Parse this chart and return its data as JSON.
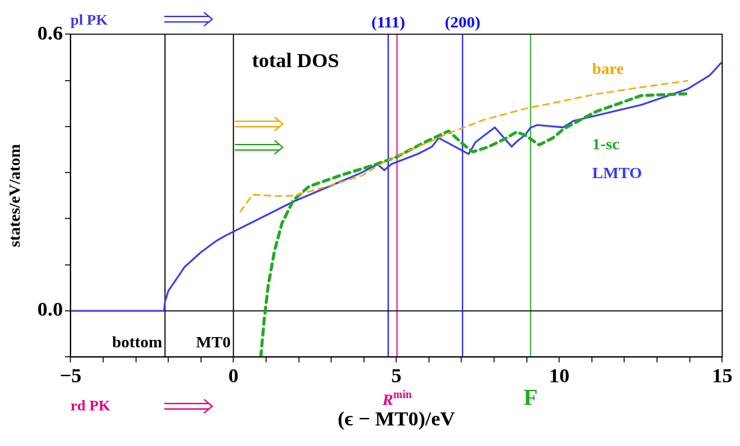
{
  "chart_data": {
    "type": "line",
    "title": "total DOS",
    "xlabel": "(ϵ − MT0)/eV",
    "ylabel": "states/eV/atom",
    "annotations": [
      "pl PK",
      "rd PK",
      "(111)",
      "(200)"
    ],
    "xlim": [
      -5,
      15
    ],
    "ylim": [
      -0.1,
      0.6
    ],
    "xticks": [
      {
        "value": -5,
        "label": "−5"
      },
      {
        "value": -4,
        "label": null
      },
      {
        "value": -3,
        "label": null
      },
      {
        "value": -2,
        "label": null
      },
      {
        "value": -1,
        "label": null
      },
      0,
      {
        "value": 1,
        "label": null
      },
      {
        "value": 2,
        "label": null
      },
      {
        "value": 3,
        "label": null
      },
      {
        "value": 4,
        "label": null
      },
      5,
      {
        "value": 6,
        "label": null
      },
      {
        "value": 7,
        "label": null
      },
      {
        "value": 8,
        "label": null
      },
      {
        "value": 9,
        "label": null
      },
      10,
      {
        "value": 11,
        "label": null
      },
      {
        "value": 12,
        "label": null
      },
      {
        "value": 13,
        "label": null
      },
      {
        "value": 14,
        "label": null
      },
      15
    ],
    "yticks": [
      {
        "value": -0.1,
        "label": null
      },
      {
        "value": 0,
        "label": "0.0"
      },
      {
        "value": 0.1,
        "label": null
      },
      {
        "value": 0.2,
        "label": null
      },
      {
        "value": 0.3,
        "label": null
      },
      {
        "value": 0.4,
        "label": null
      },
      {
        "value": 0.5,
        "label": null
      },
      {
        "value": 0.6,
        "label": "0.6"
      }
    ],
    "grid": false,
    "legend": false,
    "marker": "none",
    "series": [
      {
        "name": "bare",
        "color": "#f5a800",
        "line_style": "dashed",
        "x": [
          0.21,
          0.59,
          1.36,
          1.84,
          2.5,
          3.2,
          3.94,
          4.63,
          5.3,
          6.03,
          6.6,
          7.71,
          9.03,
          10.1,
          11.12,
          12.5,
          13.93
        ],
        "values": [
          0.215,
          0.252,
          0.249,
          0.25,
          0.262,
          0.277,
          0.293,
          0.323,
          0.345,
          0.367,
          0.385,
          0.415,
          0.44,
          0.455,
          0.47,
          0.485,
          0.499
        ]
      },
      {
        "name": "1-sc",
        "color": "#22aa22",
        "line_style": "dashed",
        "x": [
          0.84,
          0.94,
          1.07,
          1.26,
          1.49,
          1.84,
          2.32,
          3.25,
          4.21,
          4.98,
          5.88,
          6.6,
          7.14,
          7.35,
          7.8,
          8.3,
          8.69,
          8.96,
          9.38,
          9.8,
          10.16,
          11.12,
          12.52,
          13.93
        ],
        "values": [
          -0.1,
          -0.022,
          0.056,
          0.13,
          0.19,
          0.24,
          0.27,
          0.293,
          0.314,
          0.333,
          0.366,
          0.39,
          0.356,
          0.345,
          0.355,
          0.372,
          0.388,
          0.381,
          0.36,
          0.375,
          0.396,
          0.432,
          0.467,
          0.471
        ]
      },
      {
        "name": "LMTO",
        "color": "#3a3af0",
        "line_style": "solid",
        "x": [
          -5,
          -2.13,
          -2.1,
          -2,
          -1.5,
          -1,
          -0.5,
          -0.25,
          1.84,
          3.94,
          4.42,
          4.63,
          4.84,
          5.68,
          6.09,
          6.3,
          7.22,
          7.43,
          8.02,
          8.54,
          8.69,
          8.96,
          9.11,
          9.32,
          10.12,
          10.43,
          12.52,
          13.93,
          14.62,
          14.97
        ],
        "values": [
          0,
          0,
          0.02,
          0.043,
          0.095,
          0.127,
          0.153,
          0.163,
          0.237,
          0.3,
          0.318,
          0.305,
          0.318,
          0.341,
          0.356,
          0.375,
          0.34,
          0.366,
          0.398,
          0.356,
          0.367,
          0.382,
          0.397,
          0.403,
          0.398,
          0.412,
          0.447,
          0.481,
          0.511,
          0.538
        ]
      }
    ],
    "ref_lines": [
      {
        "axis": "x",
        "value": -2.1,
        "label": "bottom",
        "color": "#000000"
      },
      {
        "axis": "x",
        "value": 0,
        "label": "MT0",
        "color": "#000000"
      },
      {
        "axis": "x",
        "value": 4.75,
        "color": "#0000ff"
      },
      {
        "axis": "x",
        "value": 7.03,
        "color": "#0000ff"
      },
      {
        "axis": "x",
        "value": 5.02,
        "label": "R$^{min}$",
        "color": "#e6007e"
      },
      {
        "axis": "x",
        "value": 9.12,
        "label": "F",
        "color": "#22aa22"
      },
      {
        "axis": "y",
        "value": 0,
        "color": "#000000"
      }
    ]
  }
}
